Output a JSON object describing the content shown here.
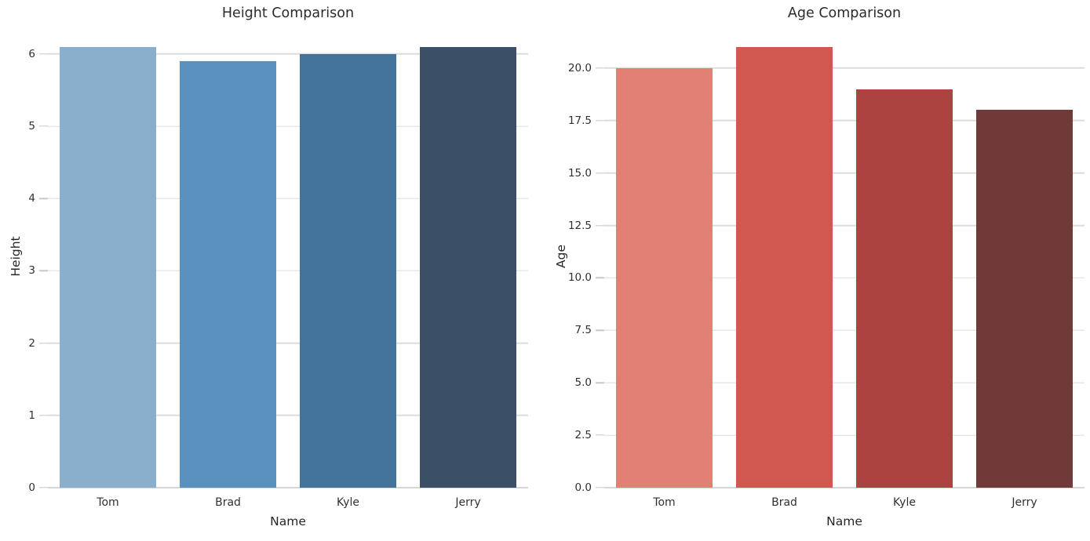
{
  "figure": {
    "background": "#ffffff"
  },
  "style": {
    "grid_color": "#dcdcdc",
    "tick_color": "#c8c8c8",
    "spine_color": "#d7d7d7",
    "text_color": "#303030",
    "label_color": "#262626",
    "title_color": "#2b2b2b"
  },
  "chart_data": [
    {
      "type": "bar",
      "title": "Height Comparison",
      "xlabel": "Name",
      "ylabel": "Height",
      "categories": [
        "Tom",
        "Brad",
        "Kyle",
        "Jerry"
      ],
      "values": [
        6.1,
        5.9,
        6.0,
        6.1
      ],
      "bar_colors": [
        "#8aafcd",
        "#5b92bd",
        "#447399",
        "#3b5067"
      ],
      "ylim": [
        0,
        6.4
      ],
      "yticks": [
        0,
        1,
        2,
        3,
        4,
        5,
        6
      ],
      "ytick_labels": [
        "0",
        "1",
        "2",
        "3",
        "4",
        "5",
        "6"
      ],
      "grid": true,
      "legend": null
    },
    {
      "type": "bar",
      "title": "Age Comparison",
      "xlabel": "Name",
      "ylabel": "Age",
      "categories": [
        "Tom",
        "Brad",
        "Kyle",
        "Jerry"
      ],
      "values": [
        20,
        21,
        19,
        18
      ],
      "bar_colors": [
        "#e08173",
        "#d05850",
        "#ac4340",
        "#6f3a37"
      ],
      "ylim": [
        0,
        22.05
      ],
      "yticks": [
        0,
        2.5,
        5,
        7.5,
        10,
        12.5,
        15,
        17.5,
        20
      ],
      "ytick_labels": [
        "0.0",
        "2.5",
        "5.0",
        "7.5",
        "10.0",
        "12.5",
        "15.0",
        "17.5",
        "20.0"
      ],
      "grid": true,
      "legend": null
    }
  ]
}
